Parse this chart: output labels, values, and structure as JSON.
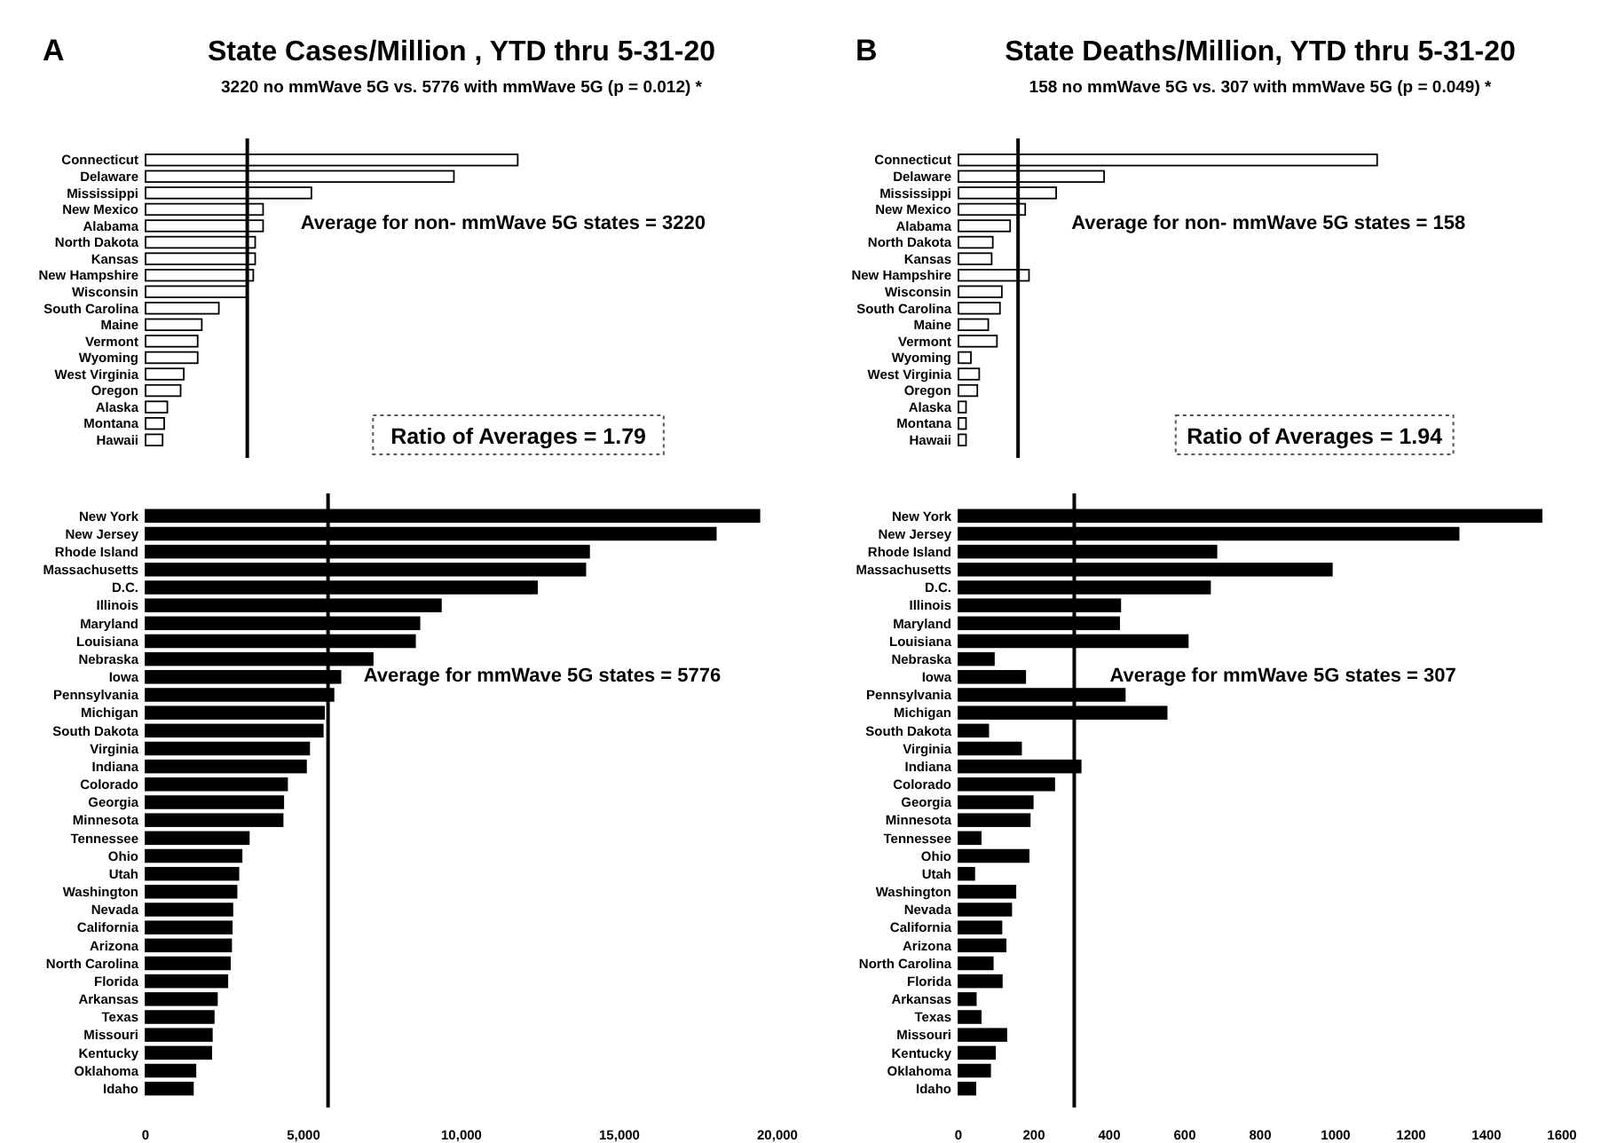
{
  "chart_data": [
    {
      "type": "bar",
      "orientation": "horizontal",
      "title": "State Cases/Million , YTD thru 5-31-20",
      "subtitle": "3220 no mmWave 5G vs. 5776 with mmWave 5G (p = 0.012) *",
      "annotations": [
        "A",
        "Ratio of Averages = 1.79"
      ],
      "color": "#ffffff",
      "tick_labels": "y",
      "xlim": [
        0,
        20000
      ],
      "categories": [
        "Connecticut",
        "Delaware",
        "Mississippi",
        "New Mexico",
        "Alabama",
        "North Dakota",
        "Kansas",
        "New Hampshire",
        "Wisconsin",
        "South Carolina",
        "Maine",
        "Vermont",
        "Wyoming",
        "West Virginia",
        "Oregon",
        "Alaska",
        "Montana",
        "Hawaii"
      ],
      "values": [
        11780,
        9760,
        5250,
        3720,
        3720,
        3470,
        3470,
        3410,
        3220,
        2320,
        1780,
        1650,
        1650,
        1210,
        1110,
        690,
        590,
        540
      ],
      "ref_lines": [
        {
          "axis": "x",
          "value": 3220,
          "label": "Average for non- mmWave 5G states = 3220"
        }
      ]
    },
    {
      "type": "bar",
      "orientation": "horizontal",
      "color": "#000000",
      "xlim": [
        0,
        20000
      ],
      "xticks": [
        0,
        {
          "value": 5000,
          "label": "5,000"
        },
        {
          "value": 10000,
          "label": "10,000"
        },
        {
          "value": 15000,
          "label": "15,000"
        },
        {
          "value": 20000,
          "label": "20,000"
        }
      ],
      "categories": [
        "New York",
        "New Jersey",
        "Rhode Island",
        "Massachusetts",
        "D.C.",
        "Illinois",
        "Maryland",
        "Louisiana",
        "Nebraska",
        "Iowa",
        "Pennsylvania",
        "Michigan",
        "South Dakota",
        "Virginia",
        "Indiana",
        "Colorado",
        "Georgia",
        "Minnesota",
        "Tennessee",
        "Ohio",
        "Utah",
        "Washington",
        "Nevada",
        "California",
        "Arizona",
        "North Carolina",
        "Florida",
        "Arkansas",
        "Texas",
        "Missouri",
        "Kentucky",
        "Oklahoma",
        "Idaho"
      ],
      "values": [
        19430,
        18050,
        14040,
        13920,
        12390,
        9350,
        8670,
        8530,
        7190,
        6170,
        5950,
        5650,
        5610,
        5180,
        5080,
        4480,
        4360,
        4340,
        3270,
        3040,
        2940,
        2880,
        2750,
        2730,
        2710,
        2670,
        2590,
        2260,
        2160,
        2100,
        2080,
        1580,
        1500
      ],
      "ref_lines": [
        {
          "axis": "x",
          "value": 5776,
          "label": "Average for mmWave 5G states = 5776"
        }
      ]
    },
    {
      "type": "bar",
      "orientation": "horizontal",
      "title": "State Deaths/Million, YTD thru 5-31-20",
      "subtitle": "158 no mmWave 5G vs. 307 with mmWave 5G (p = 0.049) *",
      "annotations": [
        "B",
        "Ratio of Averages = 1.94"
      ],
      "color": "#ffffff",
      "tick_labels": "y",
      "xlim": [
        0,
        1600
      ],
      "categories": [
        "Connecticut",
        "Delaware",
        "Mississippi",
        "New Mexico",
        "Alabama",
        "North Dakota",
        "Kansas",
        "New Hampshire",
        "Wisconsin",
        "South Carolina",
        "Maine",
        "Vermont",
        "Wyoming",
        "West Virginia",
        "Oregon",
        "Alaska",
        "Montana",
        "Hawaii"
      ],
      "values": [
        1110,
        386,
        259,
        177,
        137,
        91,
        88,
        187,
        115,
        110,
        79,
        102,
        33,
        55,
        50,
        20,
        20,
        20
      ],
      "ref_lines": [
        {
          "axis": "x",
          "value": 158,
          "label": "Average for non- mmWave 5G states = 158"
        }
      ]
    },
    {
      "type": "bar",
      "orientation": "horizontal",
      "color": "#000000",
      "xlim": [
        0,
        1600
      ],
      "xticks": [
        0,
        200,
        400,
        600,
        800,
        1000,
        1200,
        1400,
        1600
      ],
      "categories": [
        "New York",
        "New Jersey",
        "Rhode Island",
        "Massachusetts",
        "D.C.",
        "Illinois",
        "Maryland",
        "Louisiana",
        "Nebraska",
        "Iowa",
        "Pennsylvania",
        "Michigan",
        "South Dakota",
        "Virginia",
        "Indiana",
        "Colorado",
        "Georgia",
        "Minnesota",
        "Tennessee",
        "Ohio",
        "Utah",
        "Washington",
        "Nevada",
        "California",
        "Arizona",
        "North Carolina",
        "Florida",
        "Arkansas",
        "Texas",
        "Missouri",
        "Kentucky",
        "Oklahoma",
        "Idaho"
      ],
      "values": [
        1546,
        1326,
        684,
        990,
        667,
        429,
        426,
        608,
        94,
        177,
        441,
        552,
        79,
        166,
        324,
        254,
        197,
        189,
        59,
        186,
        42,
        151,
        140,
        114,
        125,
        91,
        115,
        46,
        59,
        127,
        97,
        84,
        45
      ],
      "ref_lines": [
        {
          "axis": "x",
          "value": 307,
          "label": "Average for mmWave 5G states = 307"
        }
      ]
    }
  ]
}
